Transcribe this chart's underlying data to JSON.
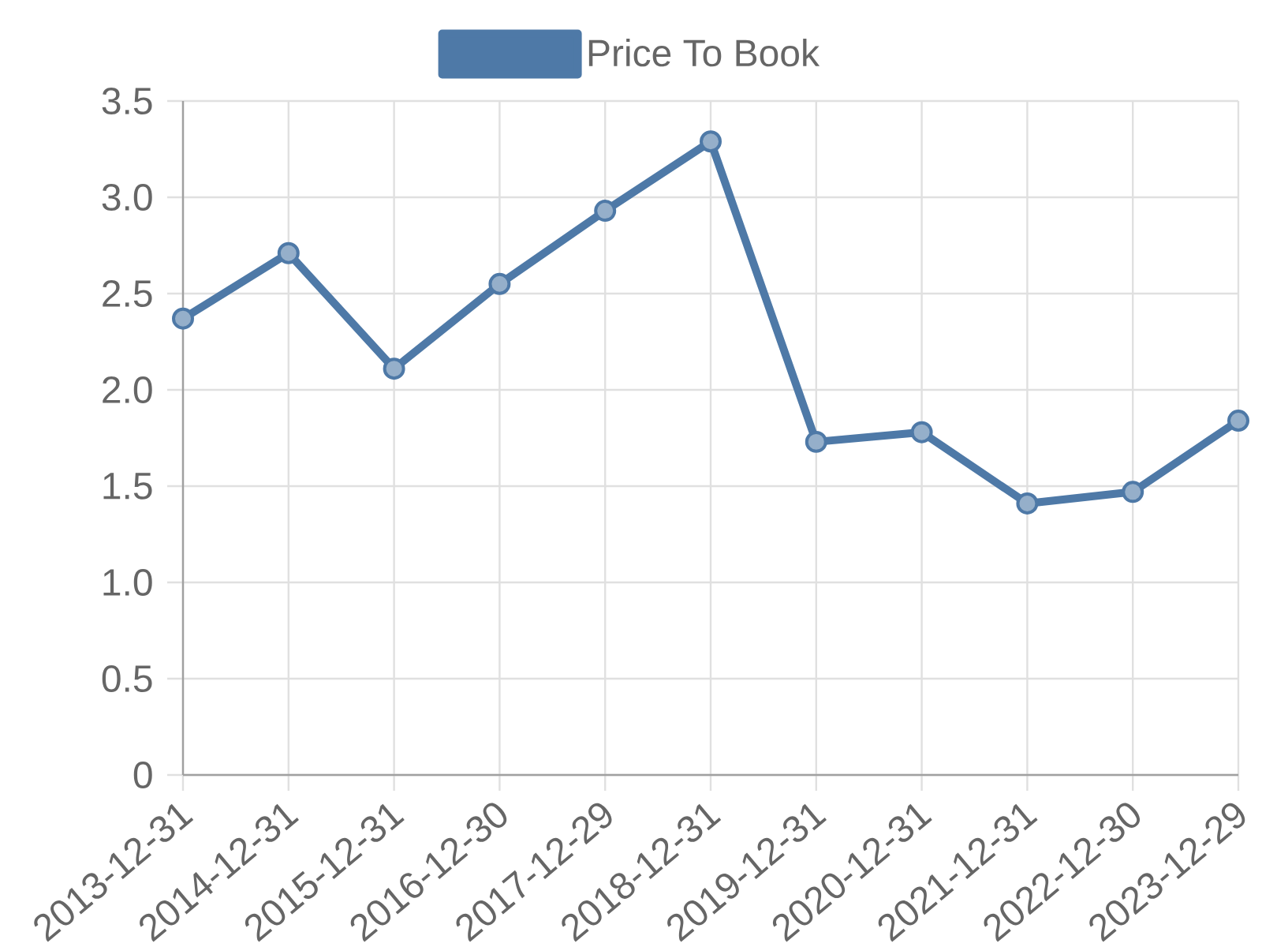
{
  "chart_data": {
    "type": "line",
    "categories": [
      "2013-12-31",
      "2014-12-31",
      "2015-12-31",
      "2016-12-30",
      "2017-12-29",
      "2018-12-31",
      "2019-12-31",
      "2020-12-31",
      "2021-12-31",
      "2022-12-30",
      "2023-12-29"
    ],
    "series": [
      {
        "name": "Price To Book",
        "color": "#4e79a7",
        "values": [
          2.37,
          2.71,
          2.11,
          2.55,
          2.93,
          3.29,
          1.73,
          1.78,
          1.41,
          1.47,
          1.84
        ]
      }
    ],
    "ylim": [
      0,
      3.5
    ],
    "yticks": [
      0,
      0.5,
      {
        "value": 1,
        "label": "1.0"
      },
      1.5,
      {
        "value": 2,
        "label": "2.0"
      },
      2.5,
      {
        "value": 3,
        "label": "3.0"
      },
      3.5
    ],
    "grid": true,
    "legend": "top",
    "marker": "circle",
    "line_style": "solid"
  }
}
